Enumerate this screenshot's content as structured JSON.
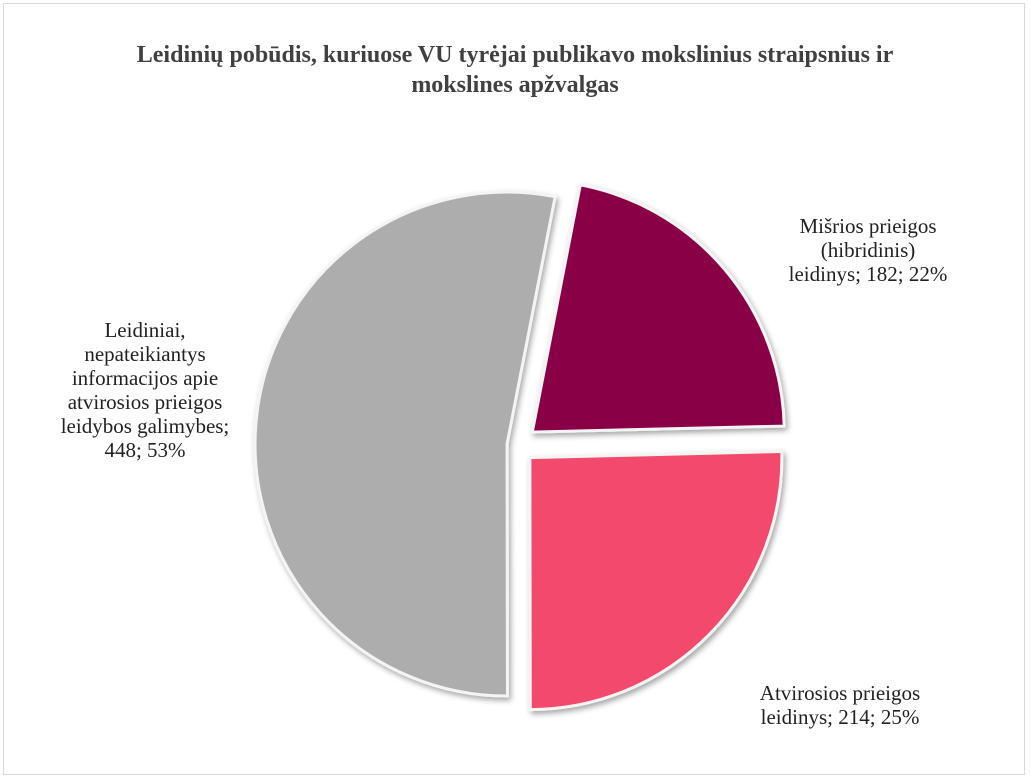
{
  "chart_data": {
    "type": "pie",
    "title": "Leidinių pobūdis, kuriuose VU tyrėjai publikavo mokslinius straipsnius ir mokslines apžvalgas",
    "categories": [
      "Mišrios prieigos (hibridinis) leidinys",
      "Atvirosios prieigos leidinys",
      "Leidiniai, nepateikiantys informacijos apie atvirosios prieigos leidybos galimybes"
    ],
    "values": [
      182,
      214,
      448
    ],
    "value_labels": [
      "Mišrios prieigos (hibridinis) leidinys; 182; 22%",
      "Atvirosios prieigos leidinys; 214; 25%",
      "Leidiniai, nepateikiantys informacijos apie atvirosios prieigos leidybos galimybes; 448; 53%"
    ],
    "colors": [
      "#8a0046",
      "#f2496d",
      "#adadad"
    ],
    "start_angle": 11
  }
}
